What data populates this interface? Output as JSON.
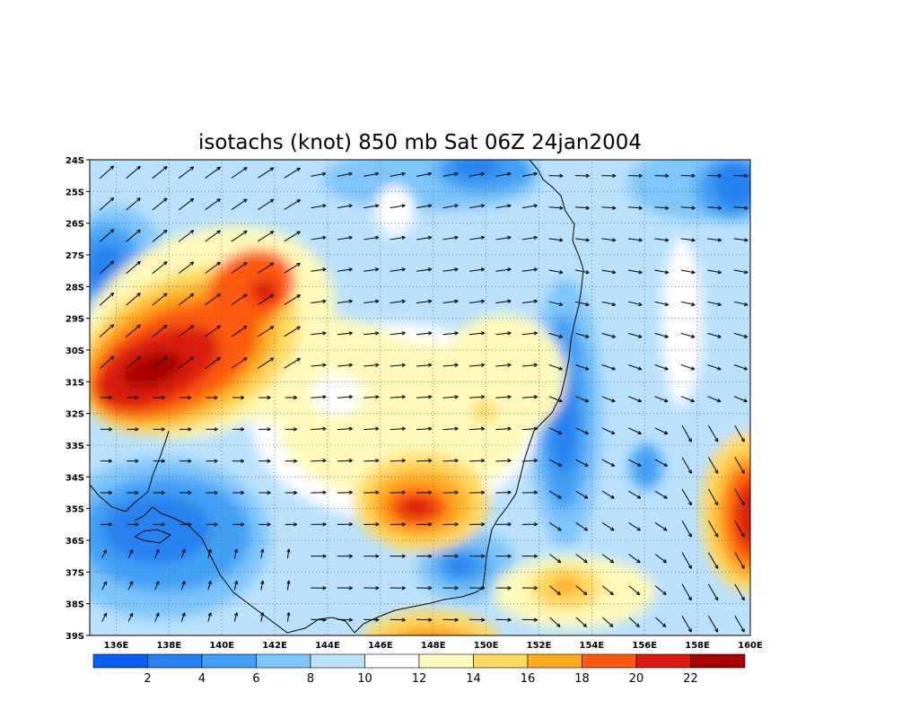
{
  "title": "isotachs (knot) 850 mb Sat 06Z 24jan2004",
  "lat_labels": [
    "24S",
    "25S",
    "26S",
    "27S",
    "28S",
    "29S",
    "30S",
    "31S",
    "32S",
    "33S",
    "34S",
    "35S",
    "36S",
    "37S",
    "38S",
    "39S"
  ],
  "lon_labels": [
    "136E",
    "138E",
    "140E",
    "142E",
    "144E",
    "146E",
    "148E",
    "150E",
    "152E",
    "154E",
    "156E",
    "158E",
    "160E"
  ],
  "colorbar": {
    "labels": [
      "2",
      "4",
      "6",
      "8",
      "10",
      "12",
      "14",
      "16",
      "18",
      "20",
      "22"
    ],
    "colors": [
      "#0a5ff5",
      "#2682f0",
      "#3fa0f5",
      "#7dc5fa",
      "#b9e1fc",
      "#ffffff",
      "#fffab9",
      "#ffd95e",
      "#ffab1e",
      "#ff5a0f",
      "#dc1a0f",
      "#a80000"
    ]
  },
  "palette": {
    "white": "#ffffff",
    "pale_yellow": "#fffab9",
    "yellow": "#ffd95e",
    "orange": "#ffab1e",
    "red_orange": "#ff5a0f",
    "red": "#dc1a0f",
    "dark_red": "#a80000",
    "pale_blue": "#b9e1fc",
    "light_blue": "#7dc5fa",
    "mid_blue": "#3fa0f5",
    "blue": "#2682f0",
    "deep_blue": "#0a5ff5"
  },
  "features": [
    "wind-vector-arrows",
    "coastline",
    "dotted-grid"
  ]
}
